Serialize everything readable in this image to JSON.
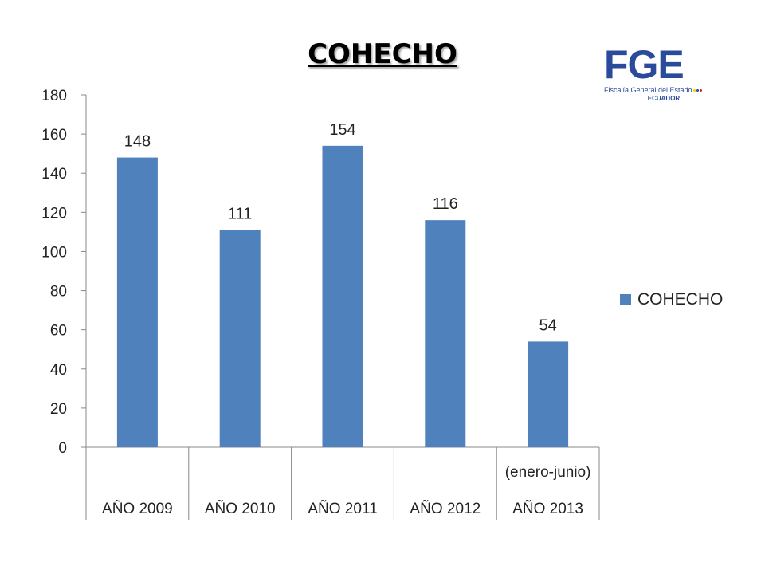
{
  "title": "COHECHO",
  "logo": {
    "letters": "FGE",
    "subtitle": "Fiscalía General del Estado",
    "country": "ECUADOR"
  },
  "colors": {
    "bar": "#4f81bd",
    "axis": "#888888"
  },
  "chart_data": {
    "type": "bar",
    "title": "COHECHO",
    "categories": [
      "AÑO 2009",
      "AÑO 2010",
      "AÑO 2011",
      "AÑO 2012",
      "AÑO 2013"
    ],
    "category_notes": [
      "",
      "",
      "",
      "",
      "(enero-junio)"
    ],
    "series": [
      {
        "name": "COHECHO",
        "values": [
          148,
          111,
          154,
          116,
          54
        ]
      }
    ],
    "data_labels": [
      "148",
      "111",
      "154",
      "116",
      "54"
    ],
    "ylim": [
      0,
      180
    ],
    "yticks": [
      0,
      20,
      40,
      60,
      80,
      100,
      120,
      140,
      160,
      180
    ],
    "grid": false,
    "legend": "right"
  }
}
